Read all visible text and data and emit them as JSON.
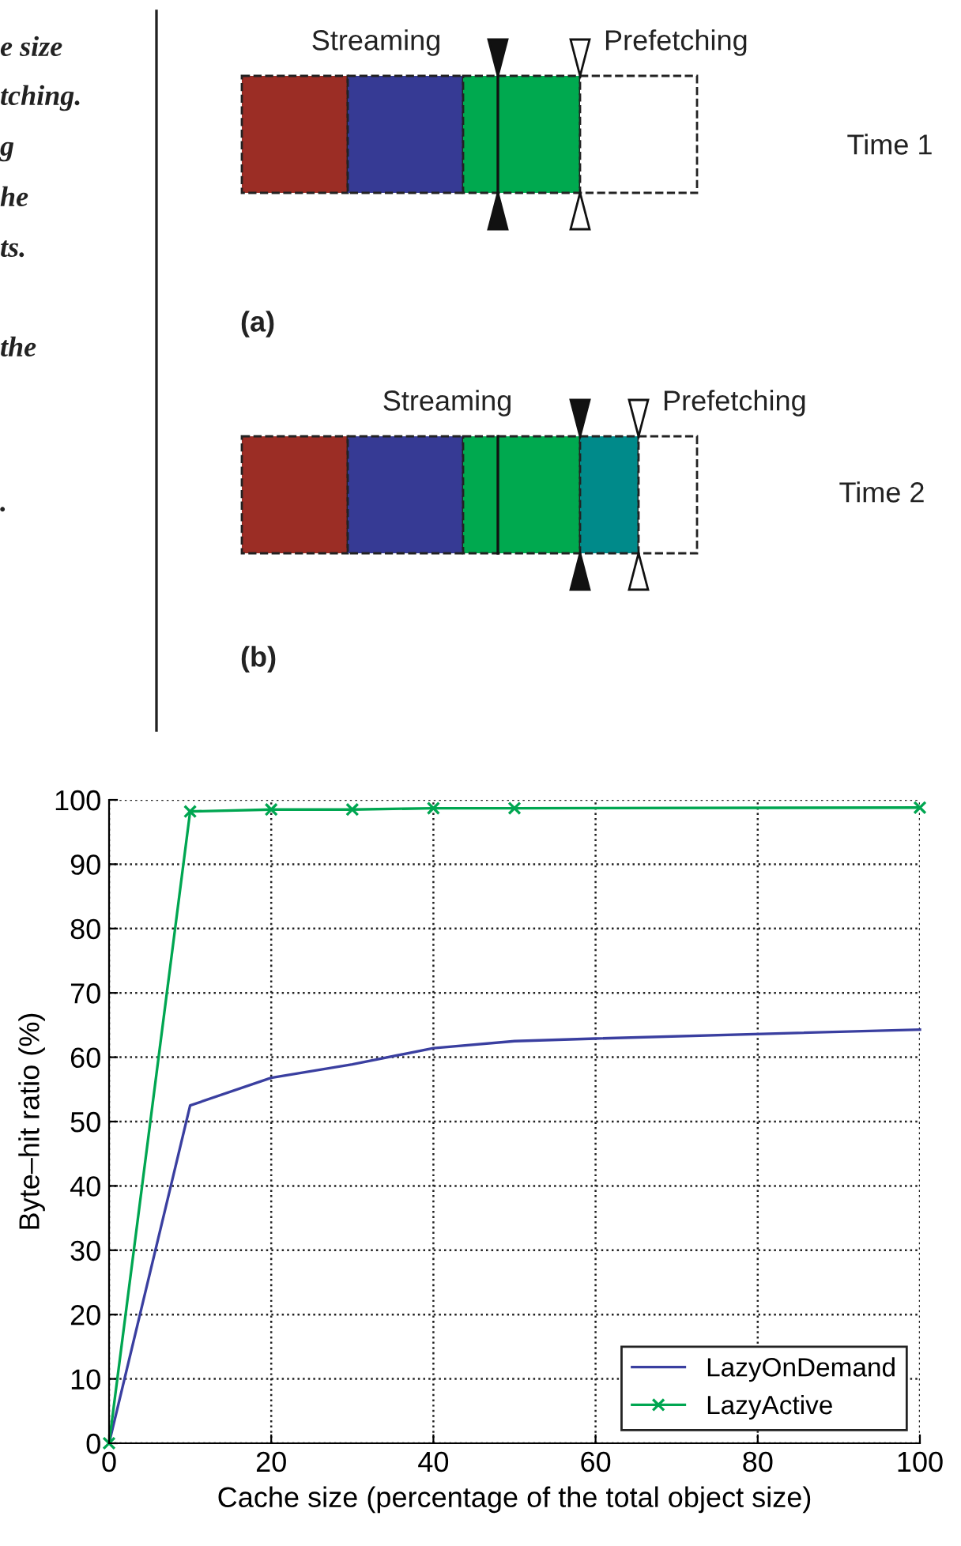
{
  "chart_data": [
    {
      "type": "other",
      "annotations": [
        "e size",
        "tching.",
        "g",
        "he",
        "ts.",
        "the",
        ".",
        "Streaming",
        "Prefetching",
        "Time 1",
        "(a)",
        "Streaming",
        "Prefetching",
        "Time 2",
        "(b)"
      ]
    },
    {
      "type": "line",
      "xlabel": "Cache size (percentage of the total object size)",
      "ylabel": "Byte–hit ratio (%)",
      "xlim": [
        0,
        100
      ],
      "ylim": [
        0,
        100
      ],
      "xticks": [
        0,
        20,
        40,
        60,
        80,
        100
      ],
      "yticks": [
        0,
        10,
        20,
        30,
        40,
        50,
        60,
        70,
        80,
        90,
        100
      ],
      "grid": true,
      "legend": "bottom right",
      "series": [
        {
          "name": "LazyOnDemand",
          "color": "#3a3fa0",
          "marker": "none",
          "x": [
            0,
            10,
            20,
            30,
            40,
            50,
            60,
            100
          ],
          "values": [
            0,
            52.5,
            56.8,
            58.9,
            61.4,
            62.5,
            62.9,
            64.3
          ]
        },
        {
          "name": "LazyActive",
          "color": "#00a651",
          "marker": "cross",
          "x": [
            0,
            10,
            20,
            30,
            40,
            50,
            100
          ],
          "values": [
            0,
            98.2,
            98.5,
            98.5,
            98.7,
            98.7,
            98.8
          ]
        }
      ]
    }
  ]
}
